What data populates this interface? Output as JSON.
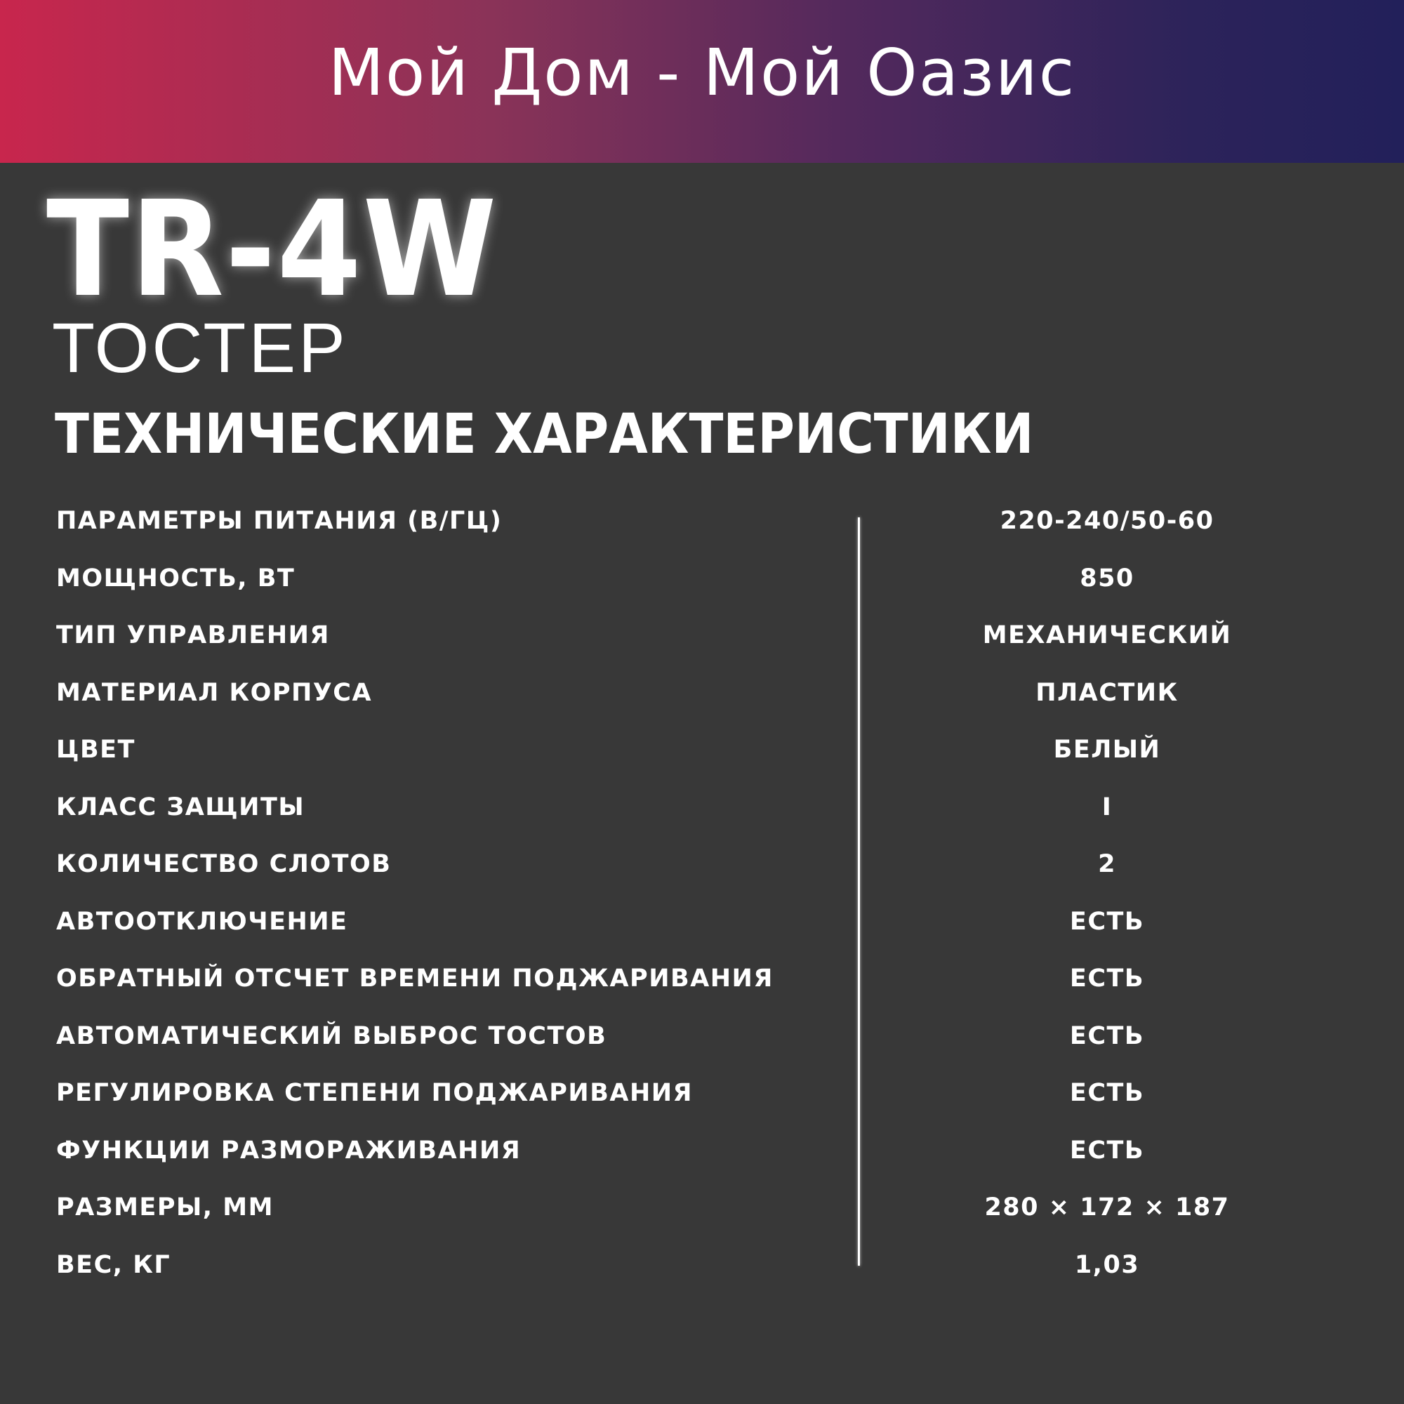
{
  "header": {
    "brand": "Мой Дом - Мой Оазис",
    "gradient_start": "#c8264d",
    "gradient_end": "#22205a"
  },
  "product": {
    "model": "TR-4W",
    "type": "ТОСТЕР"
  },
  "specs_title": "ТЕХНИЧЕСКИЕ ХАРАКТЕРИСТИКИ",
  "specs": [
    {
      "label": "ПАРАМЕТРЫ ПИТАНИЯ (В/ГЦ)",
      "value": "220-240/50-60"
    },
    {
      "label": "МОЩНОСТЬ, ВТ",
      "value": "850"
    },
    {
      "label": "ТИП УПРАВЛЕНИЯ",
      "value": "МЕХАНИЧЕСКИЙ"
    },
    {
      "label": "МАТЕРИАЛ КОРПУСА",
      "value": "ПЛАСТИК"
    },
    {
      "label": "ЦВЕТ",
      "value": "БЕЛЫЙ"
    },
    {
      "label": "КЛАСС ЗАЩИТЫ",
      "value": "I"
    },
    {
      "label": "КОЛИЧЕСТВО СЛОТОВ",
      "value": "2"
    },
    {
      "label": "АВТООТКЛЮЧЕНИЕ",
      "value": "ЕСТЬ"
    },
    {
      "label": "ОБРАТНЫЙ ОТСЧЕТ ВРЕМЕНИ ПОДЖАРИВАНИЯ",
      "value": "ЕСТЬ"
    },
    {
      "label": "АВТОМАТИЧЕСКИЙ ВЫБРОС ТОСТОВ",
      "value": "ЕСТЬ"
    },
    {
      "label": "РЕГУЛИРОВКА СТЕПЕНИ ПОДЖАРИВАНИЯ",
      "value": "ЕСТЬ"
    },
    {
      "label": "ФУНКЦИИ РАЗМОРАЖИВАНИЯ",
      "value": "ЕСТЬ"
    },
    {
      "label": "РАЗМЕРЫ, ММ",
      "value": "280 × 172 × 187"
    },
    {
      "label": "ВЕС, КГ",
      "value": "1,03"
    }
  ]
}
